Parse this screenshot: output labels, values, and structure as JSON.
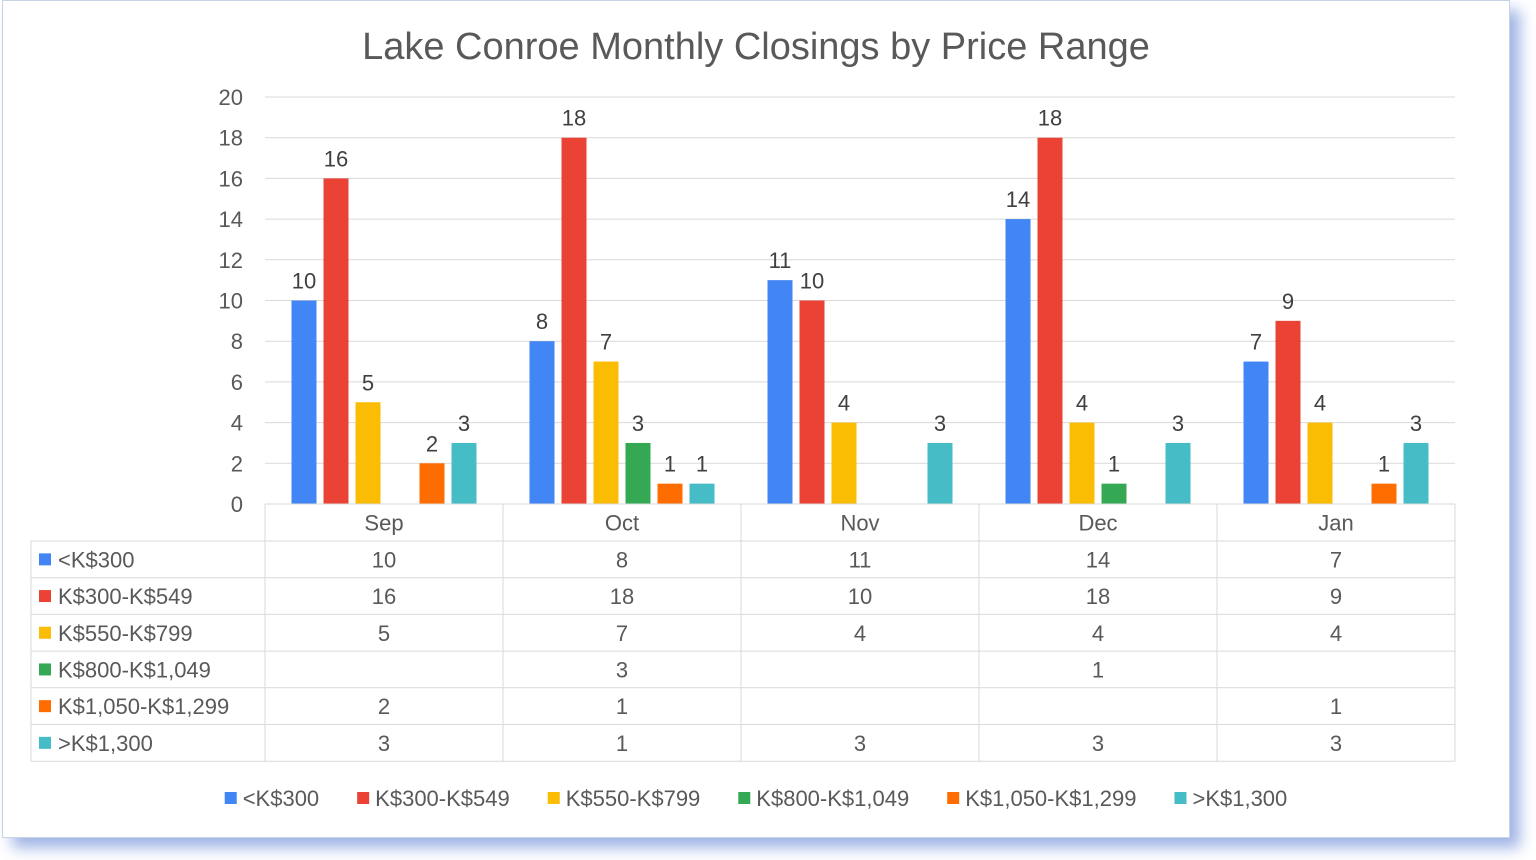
{
  "chart_data": {
    "type": "bar",
    "title": "Lake Conroe Monthly Closings by Price Range",
    "categories": [
      "Sep",
      "Oct",
      "Nov",
      "Dec",
      "Jan"
    ],
    "ylim": [
      0,
      20
    ],
    "yticks": [
      0,
      2,
      4,
      6,
      8,
      10,
      12,
      14,
      16,
      18,
      20
    ],
    "grid": true,
    "legend_position": "bottom",
    "data_table": true,
    "series": [
      {
        "name": "<K$300",
        "color": "#4285f4",
        "values": [
          10,
          8,
          11,
          14,
          7
        ]
      },
      {
        "name": "K$300-K$549",
        "color": "#ea4335",
        "values": [
          16,
          18,
          10,
          18,
          9
        ]
      },
      {
        "name": "K$550-K$799",
        "color": "#fbbc04",
        "values": [
          5,
          7,
          4,
          4,
          4
        ]
      },
      {
        "name": "K$800-K$1,049",
        "color": "#34a853",
        "values": [
          null,
          3,
          null,
          1,
          null
        ]
      },
      {
        "name": "K$1,050-K$1,299",
        "color": "#ff6d01",
        "values": [
          2,
          1,
          null,
          null,
          1
        ]
      },
      {
        "name": ">K$1,300",
        "color": "#46bdc6",
        "values": [
          3,
          1,
          3,
          3,
          3
        ]
      }
    ]
  }
}
